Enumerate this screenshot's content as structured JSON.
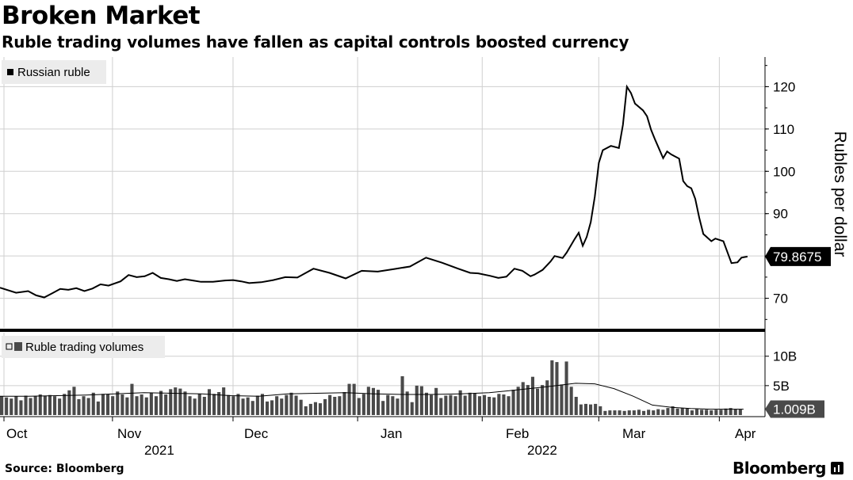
{
  "header": {
    "title": "Broken Market",
    "subtitle": "Ruble trading volumes have fallen as capital controls boosted currency"
  },
  "footer": {
    "source": "Source: Bloomberg",
    "brand": "Bloomberg"
  },
  "colors": {
    "line": "#000000",
    "bars": "#4a4a4a",
    "grid": "#cfcfcf",
    "legend_bg": "#ececec",
    "label_bg": "#000000",
    "label_bg_bottom": "#4a4a4a"
  },
  "chart_data": [
    {
      "type": "line",
      "title": "Russian ruble",
      "ylabel": "Rubles per dollar",
      "legend": "Russian ruble",
      "legend_position": "top-left",
      "ylim": [
        63,
        127
      ],
      "yticks": [
        70,
        80,
        90,
        100,
        110,
        120
      ],
      "ytick_labels": [
        "70",
        "",
        "90",
        "100",
        "110",
        "120"
      ],
      "last_value_label": "79.8675",
      "last_value": 79.87,
      "xlim": [
        0,
        183
      ],
      "series": [
        {
          "name": "Russian ruble",
          "x": [
            0,
            4,
            7,
            9,
            11,
            13,
            15,
            17,
            19,
            21,
            23,
            25,
            27,
            30,
            32,
            34,
            36,
            38,
            40,
            42,
            44,
            46,
            48,
            50,
            53,
            56,
            58,
            60,
            62,
            65,
            68,
            71,
            74,
            78,
            82,
            86,
            90,
            94,
            98,
            102,
            106,
            110,
            114,
            117,
            119,
            122,
            124,
            126,
            128,
            130,
            132,
            133,
            135,
            137,
            138,
            140,
            141,
            143,
            144,
            145,
            146,
            147,
            148,
            149,
            150,
            152,
            154,
            155,
            156,
            157,
            158,
            160,
            161,
            162,
            163,
            165,
            166,
            167,
            168,
            169,
            170,
            171,
            172,
            173,
            174,
            175,
            177,
            178,
            180,
            182
          ],
          "values": [
            72.5,
            71.3,
            71.7,
            70.7,
            70.2,
            71.2,
            72.2,
            72.0,
            72.4,
            71.7,
            72.3,
            73.3,
            73.0,
            74.0,
            75.5,
            75.0,
            75.2,
            76.0,
            74.8,
            74.5,
            74.1,
            74.5,
            74.2,
            73.9,
            73.9,
            74.2,
            74.3,
            74.0,
            73.6,
            73.8,
            74.3,
            75.0,
            74.9,
            77.0,
            76.0,
            74.7,
            76.5,
            76.3,
            76.9,
            77.5,
            79.6,
            78.4,
            77.0,
            76.0,
            75.9,
            75.3,
            74.8,
            75.1,
            77.0,
            76.5,
            75.2,
            75.6,
            76.7,
            78.7,
            80.0,
            79.5,
            80.8,
            84.0,
            85.5,
            82.4,
            84.5,
            88.0,
            94.0,
            102.0,
            105.0,
            106.0,
            105.5,
            111.0,
            120.0,
            118.5,
            116.0,
            114.4,
            113.0,
            109.8,
            107.5,
            103.1,
            104.7,
            104.0,
            103.5,
            103.0,
            97.7,
            96.5,
            96.0,
            93.5,
            89.0,
            85.2,
            83.5,
            84.1,
            83.5,
            78.3
          ]
        }
      ],
      "x_continuation": [
        [
          182,
          78.3
        ],
        [
          183.5,
          78.5
        ],
        [
          184.5,
          79.6
        ],
        [
          186,
          79.87
        ]
      ]
    },
    {
      "type": "bar",
      "title": "Ruble trading volumes",
      "legend": "Ruble trading volumes",
      "legend_position": "top-left",
      "ylim": [
        0,
        14
      ],
      "yticks": [
        5,
        10
      ],
      "ytick_labels": [
        "5B",
        "10B"
      ],
      "units": "B",
      "last_value_label": "1.009B",
      "last_value": 1.009,
      "bar_values": [
        3.2,
        3.0,
        2.8,
        3.2,
        2.5,
        3.3,
        2.9,
        3.2,
        3.5,
        3.3,
        3.4,
        3.2,
        2.8,
        3.6,
        4.2,
        4.8,
        2.7,
        3.2,
        2.9,
        3.8,
        2.3,
        3.6,
        3.5,
        3.2,
        4.0,
        3.5,
        3.0,
        5.3,
        3.2,
        3.5,
        3.0,
        3.8,
        3.2,
        4.1,
        3.5,
        4.4,
        4.7,
        4.5,
        4.0,
        3.2,
        2.8,
        3.6,
        3.1,
        4.4,
        3.6,
        3.9,
        4.7,
        3.4,
        3.2,
        3.6,
        2.8,
        3.0,
        2.4,
        3.3,
        3.6,
        2.3,
        2.5,
        3.2,
        2.8,
        3.4,
        3.8,
        3.3,
        2.6,
        1.5,
        1.9,
        2.2,
        2.0,
        2.7,
        3.4,
        3.1,
        3.2,
        3.9,
        5.3,
        5.3,
        2.9,
        3.6,
        4.8,
        4.6,
        4.3,
        2.4,
        3.4,
        3.2,
        2.8,
        6.6,
        4.0,
        2.2,
        5.0,
        4.9,
        3.8,
        3.4,
        4.6,
        2.9,
        3.3,
        3.4,
        3.2,
        4.2,
        3.3,
        3.8,
        3.7,
        3.2,
        3.4,
        3.1,
        3.0,
        3.6,
        3.5,
        3.2,
        4.3,
        4.8,
        5.6,
        5.1,
        6.5,
        4.5,
        5.1,
        5.9,
        9.3,
        9.0,
        5.2,
        9.1,
        4.8,
        3.1,
        1.8,
        1.9,
        1.8,
        1.9,
        1.5,
        0.7,
        0.8,
        0.8,
        0.8,
        0.7,
        0.8,
        0.8,
        0.9,
        0.7,
        0.9,
        0.8,
        1.0,
        0.9,
        1.2,
        1.5,
        1.1,
        1.2,
        1.1,
        0.8,
        1.0,
        0.9,
        0.9,
        0.8,
        0.9,
        0.9,
        1.1,
        1.2,
        1.0,
        1.0
      ],
      "series": [
        {
          "name": "Moving average",
          "x": [
            0,
            6,
            12,
            18,
            24,
            30,
            36,
            42,
            48,
            54,
            60,
            66,
            72,
            78,
            84,
            90,
            96,
            102,
            108,
            114,
            120,
            124,
            128,
            132,
            136,
            140,
            144,
            148,
            152,
            155
          ],
          "values": [
            3.2,
            3.2,
            3.3,
            3.4,
            3.6,
            3.8,
            3.7,
            3.6,
            3.3,
            3.2,
            3.6,
            3.7,
            3.8,
            3.6,
            3.5,
            3.5,
            3.6,
            3.8,
            4.3,
            4.8,
            5.4,
            5.3,
            4.5,
            3.2,
            1.7,
            1.3,
            1.1,
            1.0,
            1.0,
            1.0
          ]
        }
      ]
    }
  ],
  "x_axis": {
    "month_labels": [
      "Oct",
      "Nov",
      "Dec",
      "Jan",
      "Feb",
      "Mar",
      "Apr"
    ],
    "year_labels": [
      "2021",
      "2022"
    ]
  }
}
